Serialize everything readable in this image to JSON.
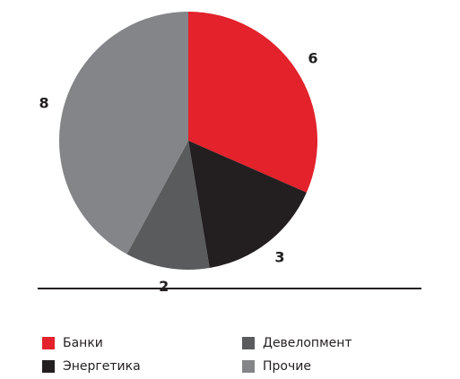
{
  "chart_data": {
    "type": "pie",
    "categories": [
      "Банки",
      "Энергетика",
      "Девелопмент",
      "Прочие"
    ],
    "values": [
      6,
      3,
      2,
      8
    ],
    "colors": [
      "#e3222b",
      "#231f20",
      "#5a5b5d",
      "#848588"
    ],
    "legend": "bottom"
  }
}
